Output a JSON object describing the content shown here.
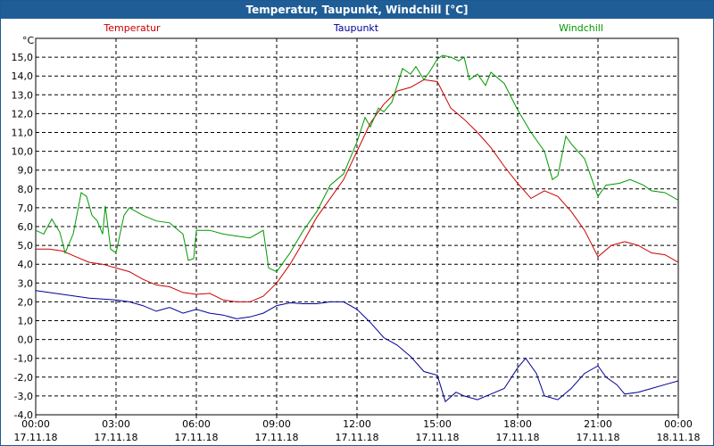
{
  "window": {
    "title": "Temperatur, Taupunkt, Windchill [°C]"
  },
  "chart_data": {
    "type": "line",
    "title": "Temperatur, Taupunkt, Windchill [°C]",
    "ylabel": "°C",
    "xlabel": "",
    "ylim": [
      -4.0,
      16.0
    ],
    "xlim": [
      0,
      24
    ],
    "grid": true,
    "y_ticks": [
      "-4,0",
      "-3,0",
      "-2,0",
      "-1,0",
      "0,0",
      "1,0",
      "2,0",
      "3,0",
      "4,0",
      "5,0",
      "6,0",
      "7,0",
      "8,0",
      "9,0",
      "10,0",
      "11,0",
      "12,0",
      "13,0",
      "14,0",
      "15,0"
    ],
    "x_ticks": [
      {
        "time": "00:00",
        "date": "17.11.18"
      },
      {
        "time": "03:00",
        "date": "17.11.18"
      },
      {
        "time": "06:00",
        "date": "17.11.18"
      },
      {
        "time": "09:00",
        "date": "17.11.18"
      },
      {
        "time": "12:00",
        "date": "17.11.18"
      },
      {
        "time": "15:00",
        "date": "17.11.18"
      },
      {
        "time": "18:00",
        "date": "17.11.18"
      },
      {
        "time": "21:00",
        "date": "17.11.18"
      },
      {
        "time": "00:00",
        "date": "18.11.18"
      }
    ],
    "series": [
      {
        "name": "Temperatur",
        "color": "#cc0000",
        "legend_pos": "left",
        "points": [
          [
            0,
            4.8
          ],
          [
            0.5,
            4.8
          ],
          [
            1,
            4.7
          ],
          [
            1.5,
            4.4
          ],
          [
            2,
            4.1
          ],
          [
            2.5,
            4.0
          ],
          [
            3,
            3.8
          ],
          [
            3.5,
            3.6
          ],
          [
            4,
            3.2
          ],
          [
            4.5,
            2.9
          ],
          [
            5,
            2.8
          ],
          [
            5.5,
            2.5
          ],
          [
            6,
            2.4
          ],
          [
            6.5,
            2.45
          ],
          [
            7,
            2.1
          ],
          [
            7.5,
            2.0
          ],
          [
            8,
            2.0
          ],
          [
            8.5,
            2.3
          ],
          [
            9,
            3.0
          ],
          [
            9.5,
            4.0
          ],
          [
            10,
            5.2
          ],
          [
            10.5,
            6.5
          ],
          [
            11,
            7.5
          ],
          [
            11.5,
            8.5
          ],
          [
            12,
            10.0
          ],
          [
            12.5,
            11.5
          ],
          [
            13,
            12.5
          ],
          [
            13.5,
            13.2
          ],
          [
            14,
            13.4
          ],
          [
            14.5,
            13.8
          ],
          [
            15,
            13.7
          ],
          [
            15.5,
            12.3
          ],
          [
            16,
            11.7
          ],
          [
            16.5,
            11.0
          ],
          [
            17,
            10.2
          ],
          [
            17.5,
            9.2
          ],
          [
            18,
            8.3
          ],
          [
            18.5,
            7.5
          ],
          [
            19,
            7.9
          ],
          [
            19.5,
            7.6
          ],
          [
            20,
            6.8
          ],
          [
            20.5,
            5.8
          ],
          [
            21,
            4.4
          ],
          [
            21.5,
            5.0
          ],
          [
            22,
            5.2
          ],
          [
            22.5,
            5.0
          ],
          [
            23,
            4.6
          ],
          [
            23.5,
            4.5
          ],
          [
            24,
            4.1
          ]
        ]
      },
      {
        "name": "Taupunkt",
        "color": "#000099",
        "legend_pos": "center",
        "points": [
          [
            0,
            2.6
          ],
          [
            0.5,
            2.5
          ],
          [
            1,
            2.4
          ],
          [
            1.5,
            2.3
          ],
          [
            2,
            2.2
          ],
          [
            2.5,
            2.15
          ],
          [
            3,
            2.1
          ],
          [
            3.5,
            2.0
          ],
          [
            4,
            1.8
          ],
          [
            4.5,
            1.5
          ],
          [
            5,
            1.7
          ],
          [
            5.5,
            1.4
          ],
          [
            6,
            1.6
          ],
          [
            6.5,
            1.4
          ],
          [
            7,
            1.3
          ],
          [
            7.5,
            1.1
          ],
          [
            8,
            1.2
          ],
          [
            8.5,
            1.4
          ],
          [
            9,
            1.8
          ],
          [
            9.5,
            1.95
          ],
          [
            10,
            1.9
          ],
          [
            10.5,
            1.9
          ],
          [
            11,
            2.0
          ],
          [
            11.5,
            2.0
          ],
          [
            12,
            1.6
          ],
          [
            12.5,
            0.9
          ],
          [
            13,
            0.1
          ],
          [
            13.5,
            -0.3
          ],
          [
            14,
            -0.9
          ],
          [
            14.5,
            -1.7
          ],
          [
            15,
            -1.9
          ],
          [
            15.3,
            -3.3
          ],
          [
            15.7,
            -2.8
          ],
          [
            16,
            -3.0
          ],
          [
            16.5,
            -3.2
          ],
          [
            17,
            -2.9
          ],
          [
            17.5,
            -2.6
          ],
          [
            18,
            -1.5
          ],
          [
            18.3,
            -1.0
          ],
          [
            18.7,
            -1.8
          ],
          [
            19,
            -3.0
          ],
          [
            19.5,
            -3.2
          ],
          [
            20,
            -2.6
          ],
          [
            20.5,
            -1.8
          ],
          [
            21,
            -1.4
          ],
          [
            21.3,
            -2.0
          ],
          [
            21.7,
            -2.4
          ],
          [
            22,
            -2.9
          ],
          [
            22.5,
            -2.8
          ],
          [
            23,
            -2.6
          ],
          [
            23.5,
            -2.4
          ],
          [
            24,
            -2.2
          ]
        ]
      },
      {
        "name": "Windchill",
        "color": "#009900",
        "legend_pos": "right",
        "points": [
          [
            0,
            5.8
          ],
          [
            0.3,
            5.6
          ],
          [
            0.6,
            6.4
          ],
          [
            0.9,
            5.7
          ],
          [
            1.1,
            4.6
          ],
          [
            1.4,
            5.6
          ],
          [
            1.7,
            7.8
          ],
          [
            1.9,
            7.6
          ],
          [
            2.1,
            6.6
          ],
          [
            2.3,
            6.3
          ],
          [
            2.5,
            5.6
          ],
          [
            2.6,
            7.1
          ],
          [
            2.8,
            4.8
          ],
          [
            3.0,
            4.6
          ],
          [
            3.3,
            6.6
          ],
          [
            3.5,
            7.0
          ],
          [
            4,
            6.6
          ],
          [
            4.5,
            6.3
          ],
          [
            5,
            6.2
          ],
          [
            5.5,
            5.6
          ],
          [
            5.7,
            4.2
          ],
          [
            5.9,
            4.3
          ],
          [
            6,
            5.8
          ],
          [
            6.5,
            5.8
          ],
          [
            7,
            5.6
          ],
          [
            7.5,
            5.5
          ],
          [
            8,
            5.4
          ],
          [
            8.5,
            5.8
          ],
          [
            8.7,
            3.8
          ],
          [
            9,
            3.6
          ],
          [
            9.5,
            4.6
          ],
          [
            10,
            5.8
          ],
          [
            10.5,
            6.8
          ],
          [
            11,
            8.2
          ],
          [
            11.5,
            8.8
          ],
          [
            12,
            10.5
          ],
          [
            12.3,
            11.8
          ],
          [
            12.5,
            11.3
          ],
          [
            12.8,
            12.3
          ],
          [
            13,
            12.1
          ],
          [
            13.3,
            12.6
          ],
          [
            13.7,
            14.4
          ],
          [
            14,
            14.1
          ],
          [
            14.2,
            14.5
          ],
          [
            14.5,
            13.8
          ],
          [
            14.7,
            14.2
          ],
          [
            15,
            14.9
          ],
          [
            15.2,
            15.1
          ],
          [
            15.5,
            15.0
          ],
          [
            15.8,
            14.8
          ],
          [
            16,
            15.0
          ],
          [
            16.2,
            13.8
          ],
          [
            16.5,
            14.1
          ],
          [
            16.8,
            13.5
          ],
          [
            17,
            14.2
          ],
          [
            17.5,
            13.6
          ],
          [
            18,
            12.2
          ],
          [
            18.5,
            11.0
          ],
          [
            19,
            10.0
          ],
          [
            19.3,
            8.5
          ],
          [
            19.5,
            8.7
          ],
          [
            19.8,
            10.8
          ],
          [
            20,
            10.4
          ],
          [
            20.5,
            9.6
          ],
          [
            21,
            7.6
          ],
          [
            21.3,
            8.2
          ],
          [
            21.8,
            8.3
          ],
          [
            22.2,
            8.5
          ],
          [
            22.7,
            8.2
          ],
          [
            23,
            7.9
          ],
          [
            23.5,
            7.8
          ],
          [
            24,
            7.4
          ]
        ]
      }
    ]
  }
}
